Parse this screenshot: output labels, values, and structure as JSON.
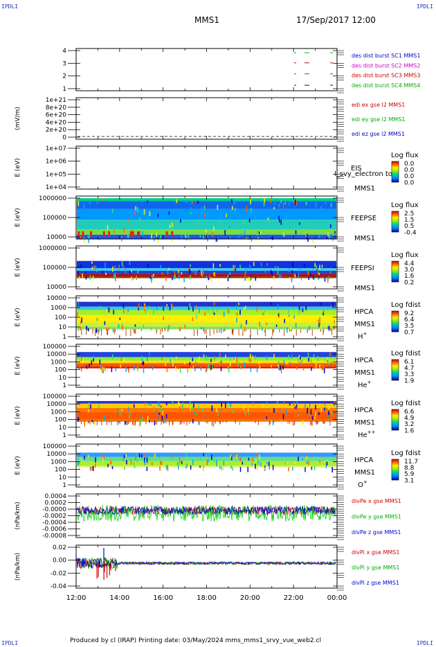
{
  "corners": {
    "tl": "IPDLI",
    "tr": "IPDLI",
    "bl": "IPDLI",
    "br": "IPDLI"
  },
  "header": {
    "title": "MMS1",
    "date": "17/Sep/2017 12:00"
  },
  "footer": {
    "text": "Produced by cl (IRAP)   Printing date: 03/May/2024   mms_mms1_srvy_vue_web2.cl"
  },
  "chart_data": {
    "type": "heatmap",
    "x_ticks": [
      "12:00",
      "14:00",
      "16:00",
      "18:00",
      "20:00",
      "22:00",
      "00:00"
    ],
    "panels": [
      {
        "id": "burst",
        "ylabel": "",
        "yticks": [
          "4",
          "3",
          "2",
          "1"
        ],
        "legend": [
          {
            "text": "des dist burst SC1 MMS1",
            "color": "#0000cc"
          },
          {
            "text": "des dist burst SC2 MMS2",
            "color": "#cc00cc"
          },
          {
            "text": "des dist burst SC3 MMS3",
            "color": "#cc0000"
          },
          {
            "text": "des dist burst SC4 MMS4",
            "color": "#00aa00"
          }
        ]
      },
      {
        "id": "edi",
        "ylabel": "(mV/m)",
        "yticks": [
          "1e+21",
          "8e+20",
          "6e+20",
          "4e+20",
          "2e+20",
          "0"
        ],
        "legend": [
          {
            "text": "edi ex gse l2 MMS1",
            "color": "#cc0000"
          },
          {
            "text": "edi ey gse l2 MMS1",
            "color": "#00aa00"
          },
          {
            "text": "edi ez gse l2 MMS1",
            "color": "#0000cc"
          }
        ]
      },
      {
        "id": "eis",
        "ylabel": "E (eV)",
        "yticks": [
          "1e+07",
          "1e+06",
          "1e+05",
          "1e+04"
        ],
        "inst": [
          "EIS",
          "MMS1"
        ],
        "overlay": "l_svy_electron to",
        "cbar": {
          "title": "Log flux",
          "values": [
            "0.0",
            "0.0",
            "0.0",
            "0.0"
          ]
        }
      },
      {
        "id": "feepse",
        "ylabel": "E (eV)",
        "yticks": [
          "1000000",
          "100000",
          "10000"
        ],
        "inst": [
          "FEEPSE",
          "MMS1"
        ],
        "cbar": {
          "title": "Log flux",
          "values": [
            "2.5",
            "1.5",
            "0.5",
            "-0.4"
          ]
        }
      },
      {
        "id": "feepsi",
        "ylabel": "E (eV)",
        "yticks": [
          "1000000",
          "100000",
          "10000"
        ],
        "inst": [
          "FEEPSI",
          "MMS1"
        ],
        "cbar": {
          "title": "Log flux",
          "values": [
            "4.4",
            "3.0",
            "1.6",
            "0.2"
          ]
        }
      },
      {
        "id": "hpca_h",
        "ylabel": "E (eV)",
        "yticks": [
          "10000",
          "1000",
          "100",
          "10",
          "1"
        ],
        "inst": [
          "HPCA",
          "MMS1"
        ],
        "species": "H",
        "sup": "+",
        "cbar": {
          "title": "Log fdist",
          "values": [
            "9.2",
            "6.4",
            "3.5",
            "0.7"
          ]
        }
      },
      {
        "id": "hpca_he",
        "ylabel": "E (eV)",
        "yticks": [
          "100000",
          "10000",
          "1000",
          "100",
          "10",
          "1"
        ],
        "inst": [
          "HPCA",
          "MMS1"
        ],
        "species": "He",
        "sup": "+",
        "cbar": {
          "title": "Log fdist",
          "values": [
            "6.1",
            "4.7",
            "3.3",
            "1.9"
          ]
        }
      },
      {
        "id": "hpca_he2",
        "ylabel": "E (eV)",
        "yticks": [
          "100000",
          "10000",
          "1000",
          "100",
          "10",
          "1"
        ],
        "inst": [
          "HPCA",
          "MMS1"
        ],
        "species": "He",
        "sup": "++",
        "cbar": {
          "title": "Log fdist",
          "values": [
            "6.6",
            "4.9",
            "3.2",
            "1.6"
          ]
        }
      },
      {
        "id": "hpca_o",
        "ylabel": "E (eV)",
        "yticks": [
          "100000",
          "10000",
          "1000",
          "100",
          "10",
          "1"
        ],
        "inst": [
          "HPCA",
          "MMS1"
        ],
        "species": "O",
        "sup": "+",
        "cbar": {
          "title": "Log fdist",
          "values": [
            "11.7",
            "8.8",
            "5.9",
            "3.1"
          ]
        }
      },
      {
        "id": "divpe",
        "ylabel": "(nPa/km)",
        "yticks": [
          "0.0004",
          "0.0002",
          "-0.0000",
          "-0.0002",
          "-0.0004",
          "-0.0006",
          "-0.0008"
        ],
        "legend": [
          {
            "text": "divPe x gse MMS1",
            "color": "#cc0000"
          },
          {
            "text": "divPe y gse MMS1",
            "color": "#00aa00"
          },
          {
            "text": "divPe z gse MMS1",
            "color": "#0000cc"
          }
        ]
      },
      {
        "id": "divpi",
        "ylabel": "(nPa/km)",
        "yticks": [
          "0.02",
          "0.00",
          "-0.02",
          "-0.04"
        ],
        "legend": [
          {
            "text": "divPi x gse MMS1",
            "color": "#cc0000"
          },
          {
            "text": "divPi y gse MMS1",
            "color": "#00aa00"
          },
          {
            "text": "divPi z gse MMS1",
            "color": "#0000cc"
          }
        ]
      }
    ]
  }
}
